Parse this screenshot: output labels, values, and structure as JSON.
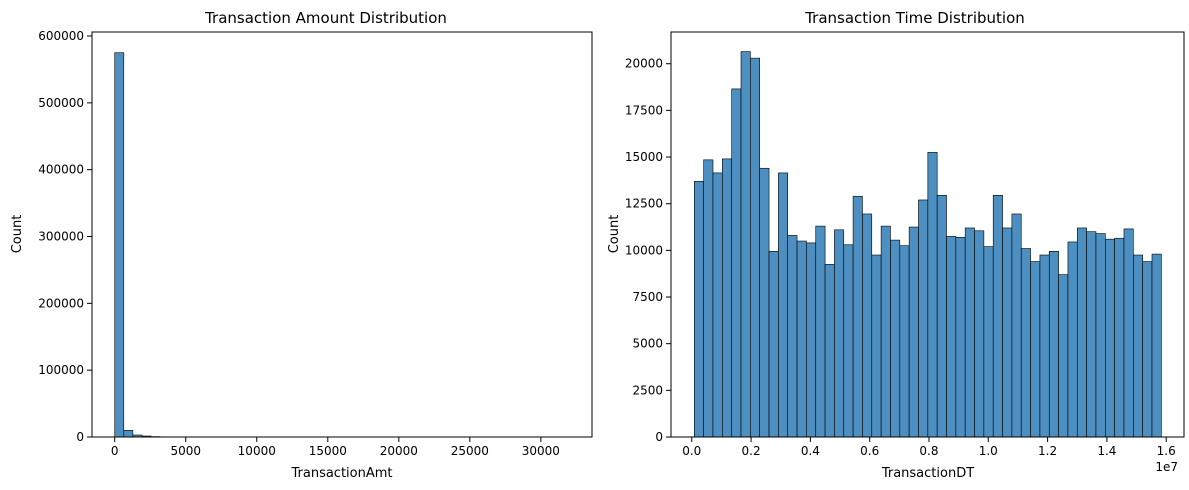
{
  "chart_data": [
    {
      "type": "bar",
      "title": "Transaction Amount Distribution",
      "xlabel": "TransactionAmt",
      "ylabel": "Count",
      "bar_color": "#4c8fc0",
      "xlim": [
        -1600,
        33600
      ],
      "ylim": [
        0,
        606000
      ],
      "x_ticks": [
        0,
        5000,
        10000,
        15000,
        20000,
        25000,
        30000
      ],
      "x_tick_labels": [
        "0",
        "5000",
        "10000",
        "15000",
        "20000",
        "25000",
        "30000"
      ],
      "y_ticks": [
        0,
        100000,
        200000,
        300000,
        400000,
        500000,
        600000
      ],
      "y_tick_labels": [
        "0",
        "100000",
        "200000",
        "300000",
        "400000",
        "500000",
        "600000"
      ],
      "bin_edges_start": 0.25,
      "bin_width": 638.7,
      "values": [
        575000,
        10000,
        3000,
        1500,
        600,
        300,
        150,
        100,
        60,
        40,
        30,
        20,
        15,
        12,
        10,
        8,
        6,
        5,
        4,
        3,
        3,
        2,
        2,
        2,
        1,
        1,
        1,
        1,
        1,
        1,
        1,
        1,
        0,
        0,
        0,
        0,
        0,
        0,
        0,
        0,
        0,
        0,
        0,
        0,
        0,
        0,
        0,
        0,
        0,
        1
      ]
    },
    {
      "type": "bar",
      "title": "Transaction Time Distribution",
      "xlabel": "TransactionDT",
      "ylabel": "Count",
      "bar_color": "#4c8fc0",
      "x_offset_label": "1e7",
      "xlim": [
        -0.07,
        1.66
      ],
      "ylim": [
        0,
        21700
      ],
      "x_ticks": [
        0.0,
        0.2,
        0.4,
        0.6,
        0.8,
        1.0,
        1.2,
        1.4,
        1.6
      ],
      "x_tick_labels": [
        "0.0",
        "0.2",
        "0.4",
        "0.6",
        "0.8",
        "1.0",
        "1.2",
        "1.4",
        "1.6"
      ],
      "y_ticks": [
        0,
        2500,
        5000,
        7500,
        10000,
        12500,
        15000,
        17500,
        20000
      ],
      "y_tick_labels": [
        "0",
        "2500",
        "5000",
        "7500",
        "10000",
        "12500",
        "15000",
        "17500",
        "20000"
      ],
      "bin_edges_start": 0.0086,
      "bin_width": 0.0315,
      "values": [
        13700,
        14850,
        14150,
        14900,
        18650,
        20650,
        20300,
        14400,
        9950,
        14150,
        10800,
        10500,
        10400,
        11300,
        9250,
        11100,
        10300,
        12900,
        11950,
        9750,
        11300,
        10550,
        10250,
        11250,
        12700,
        15250,
        12950,
        10750,
        10700,
        11200,
        11050,
        10200,
        12950,
        11200,
        11950,
        10100,
        9400,
        9750,
        9950,
        8700,
        10450,
        11200,
        11000,
        10900,
        10600,
        10650,
        11150,
        9750,
        9400,
        9800
      ]
    }
  ]
}
